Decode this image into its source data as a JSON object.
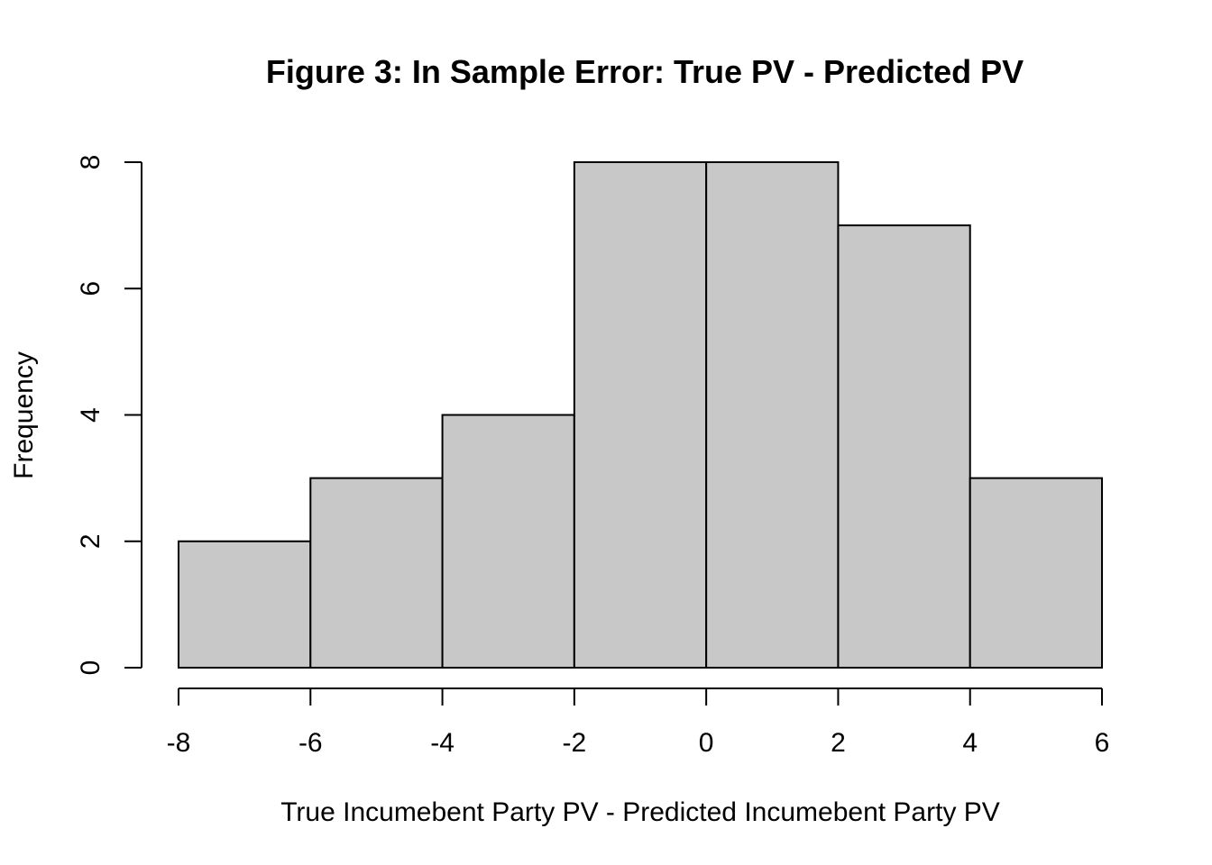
{
  "chart_data": {
    "type": "bar",
    "title": "Figure 3: In Sample Error: True PV - Predicted PV",
    "xlabel": "True Incumebent Party PV - Predicted Incumebent Party PV",
    "ylabel": "Frequency",
    "bins": [
      {
        "start": -8,
        "end": -6,
        "count": 2
      },
      {
        "start": -6,
        "end": -4,
        "count": 3
      },
      {
        "start": -4,
        "end": -2,
        "count": 4
      },
      {
        "start": -2,
        "end": 0,
        "count": 8
      },
      {
        "start": 0,
        "end": 2,
        "count": 8
      },
      {
        "start": 2,
        "end": 4,
        "count": 7
      },
      {
        "start": 4,
        "end": 6,
        "count": 3
      }
    ],
    "xlim": [
      -8,
      6
    ],
    "ylim": [
      0,
      8
    ],
    "x_ticks": [
      -8,
      -6,
      -4,
      -2,
      0,
      2,
      4,
      6
    ],
    "y_ticks": [
      0,
      2,
      4,
      6,
      8
    ],
    "bar_color": "#c8c8c8",
    "edge_color": "#000000",
    "grid": false,
    "legend": "none"
  }
}
